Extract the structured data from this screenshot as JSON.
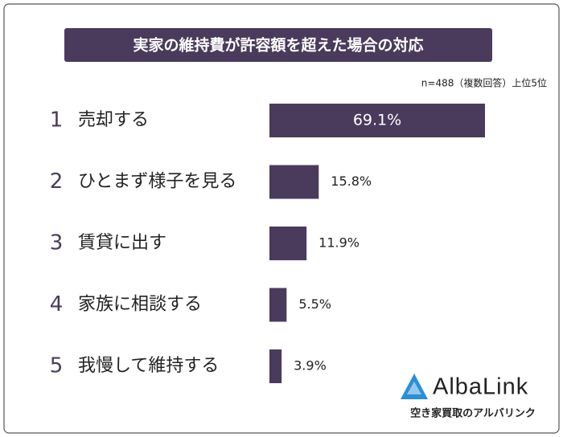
{
  "chart_data": {
    "type": "bar",
    "orientation": "horizontal",
    "title": "実家の維持費が許容額を超えた場合の対応",
    "subtitle": "n=488（複数回答）上位5位",
    "ranks": [
      1,
      2,
      3,
      4,
      5
    ],
    "categories": [
      "売却する",
      "ひとまず様子を見る",
      "賃貸に出す",
      "家族に相談する",
      "我慢して維持する"
    ],
    "values": [
      69.1,
      15.8,
      11.9,
      5.5,
      3.9
    ],
    "value_labels": [
      "69.1%",
      "15.8%",
      "11.9%",
      "5.5%",
      "3.9%"
    ],
    "color": "#4a3b5c"
  },
  "logo": {
    "name": "AlbaLink",
    "tagline": "空き家買取のアルバリンク"
  }
}
